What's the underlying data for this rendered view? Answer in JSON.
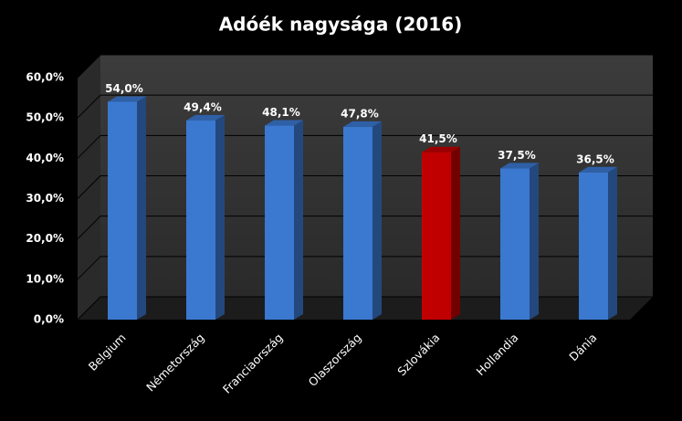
{
  "chart_data": {
    "type": "bar",
    "title": "Adóék nagysága (2016)",
    "categories": [
      "Belgium",
      "Németország",
      "Franciaország",
      "Olaszország",
      "Szlovákia",
      "Hollandia",
      "Dánia"
    ],
    "values": [
      54.0,
      49.4,
      48.1,
      47.8,
      41.5,
      37.5,
      36.5
    ],
    "value_labels": [
      "54,0%",
      "49,4%",
      "48,1%",
      "47,8%",
      "41,5%",
      "37,5%",
      "36,5%"
    ],
    "colors": [
      "#3b78d0",
      "#3b78d0",
      "#3b78d0",
      "#3b78d0",
      "#c00000",
      "#3b78d0",
      "#3b78d0"
    ],
    "ylim": [
      0,
      60
    ],
    "yticks": [
      {
        "value": 0,
        "label": "0,0%"
      },
      {
        "value": 10,
        "label": "10,0%"
      },
      {
        "value": 20,
        "label": "20,0%"
      },
      {
        "value": 30,
        "label": "30,0%"
      },
      {
        "value": 40,
        "label": "40,0%"
      },
      {
        "value": 50,
        "label": "50,0%"
      },
      {
        "value": 60,
        "label": "60,0%"
      }
    ],
    "grid": true
  }
}
